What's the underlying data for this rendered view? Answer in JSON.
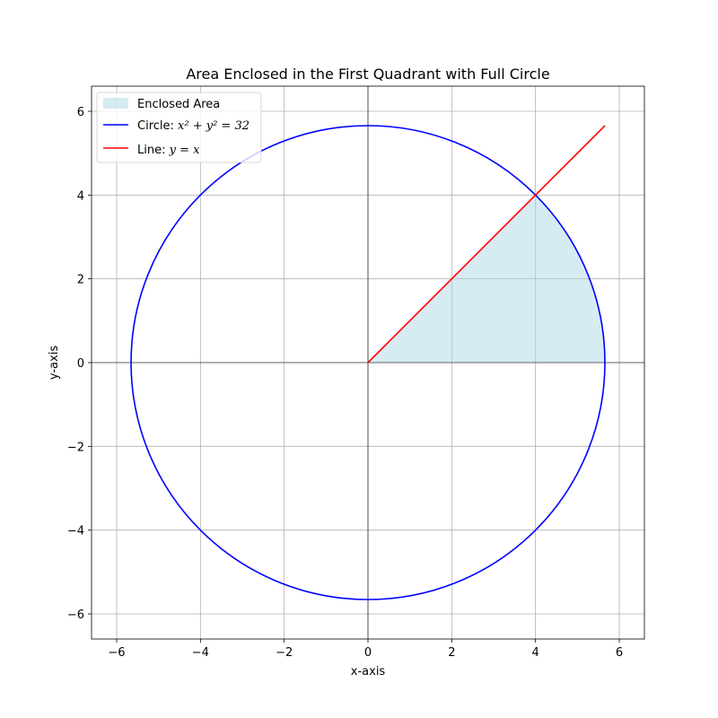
{
  "chart_data": {
    "type": "line",
    "title": "Area Enclosed in the First Quadrant with Full Circle",
    "xlabel": "x-axis",
    "ylabel": "y-axis",
    "xlim": [
      -6.6,
      6.6
    ],
    "ylim": [
      -6.6,
      6.6
    ],
    "xticks": [
      -6,
      -4,
      -2,
      0,
      2,
      4,
      6
    ],
    "yticks": [
      -6,
      -4,
      -2,
      0,
      2,
      4,
      6
    ],
    "xtick_labels": [
      "−6",
      "−4",
      "−2",
      "0",
      "2",
      "4",
      "6"
    ],
    "ytick_labels": [
      "−6",
      "−4",
      "−2",
      "0",
      "2",
      "4",
      "6"
    ],
    "grid": true,
    "legend_position": "top-left",
    "series": [
      {
        "name": "Enclosed Area",
        "kind": "fill",
        "color": "#add8e6",
        "opacity": 0.5,
        "x": [
          0,
          4,
          5.657
        ],
        "y": [
          0,
          4,
          0
        ]
      },
      {
        "name": "Circle: x² + y² = 32",
        "legend_prefix": "Circle: ",
        "legend_math": "x² + y² = 32",
        "kind": "circle",
        "color": "#0000ff",
        "center": [
          0,
          0
        ],
        "radius": 5.657
      },
      {
        "name": "Line: y = x",
        "legend_prefix": "Line: ",
        "legend_math": "y = x",
        "kind": "line",
        "color": "#ff0000",
        "x": [
          0,
          5.657
        ],
        "y": [
          0,
          5.657
        ]
      }
    ],
    "reference_lines": {
      "x0": true,
      "y0": true,
      "color": "#000000"
    }
  }
}
